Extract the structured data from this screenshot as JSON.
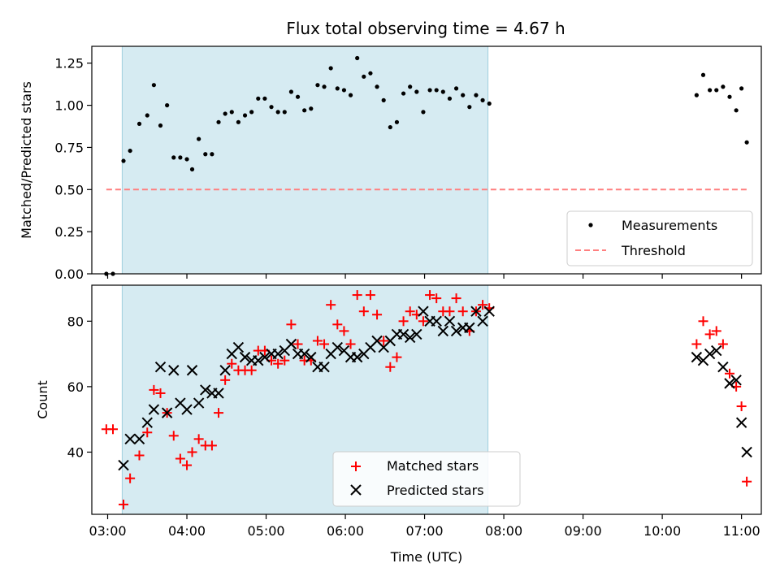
{
  "chart_data": [
    {
      "type": "scatter",
      "title": "Flux total observing time = 4.67 h",
      "xlabel": "",
      "ylabel": "Matched/Predicted stars",
      "xlim": [
        "02:48",
        "11:15"
      ],
      "ylim": [
        0,
        1.35
      ],
      "yticks": [
        0.0,
        0.25,
        0.5,
        0.75,
        1.0,
        1.25
      ],
      "ytick_labels": [
        "0.00",
        "0.25",
        "0.50",
        "0.75",
        "1.00",
        "1.25"
      ],
      "shaded_span": [
        "03:11",
        "07:48"
      ],
      "legend_position": "lower-right",
      "series": [
        {
          "name": "Measurements",
          "kind": "scatter",
          "color": "#000000",
          "x": [
            "02:59",
            "03:04",
            "03:12",
            "03:17",
            "03:24",
            "03:30",
            "03:35",
            "03:40",
            "03:45",
            "03:50",
            "03:55",
            "04:00",
            "04:04",
            "04:09",
            "04:14",
            "04:19",
            "04:24",
            "04:29",
            "04:34",
            "04:39",
            "04:44",
            "04:49",
            "04:54",
            "04:59",
            "05:04",
            "05:09",
            "05:14",
            "05:19",
            "05:24",
            "05:29",
            "05:34",
            "05:39",
            "05:44",
            "05:49",
            "05:54",
            "05:59",
            "06:04",
            "06:09",
            "06:14",
            "06:19",
            "06:24",
            "06:29",
            "06:34",
            "06:39",
            "06:44",
            "06:49",
            "06:54",
            "06:59",
            "07:04",
            "07:09",
            "07:14",
            "07:19",
            "07:24",
            "07:29",
            "07:34",
            "07:39",
            "07:44",
            "07:49",
            "10:26",
            "10:31",
            "10:36",
            "10:41",
            "10:46",
            "10:51",
            "10:56",
            "11:00",
            "11:04"
          ],
          "y": [
            0.0,
            0.0,
            0.67,
            0.73,
            0.89,
            0.94,
            1.12,
            0.88,
            1.0,
            0.69,
            0.69,
            0.68,
            0.62,
            0.8,
            0.71,
            0.71,
            0.9,
            0.95,
            0.96,
            0.9,
            0.94,
            0.96,
            1.04,
            1.04,
            0.99,
            0.96,
            0.96,
            1.08,
            1.05,
            0.97,
            0.98,
            1.12,
            1.11,
            1.22,
            1.1,
            1.09,
            1.06,
            1.28,
            1.17,
            1.19,
            1.11,
            1.03,
            0.87,
            0.9,
            1.07,
            1.11,
            1.08,
            0.96,
            1.09,
            1.09,
            1.08,
            1.04,
            1.1,
            1.06,
            0.99,
            1.06,
            1.03,
            1.01,
            1.06,
            1.18,
            1.09,
            1.09,
            1.11,
            1.05,
            0.97,
            1.1,
            0.78
          ]
        },
        {
          "name": "Threshold",
          "kind": "line",
          "style": "dashed",
          "color": "#ff7f7f",
          "x": [
            "02:59",
            "11:04"
          ],
          "y": [
            0.5,
            0.5
          ]
        }
      ]
    },
    {
      "type": "scatter",
      "title": "",
      "xlabel": "Time (UTC)",
      "ylabel": "Count",
      "xlim": [
        "02:48",
        "11:15"
      ],
      "ylim": [
        21,
        91
      ],
      "yticks": [
        40,
        60,
        80
      ],
      "ytick_labels": [
        "40",
        "60",
        "80"
      ],
      "xticks": [
        "03:00",
        "04:00",
        "05:00",
        "06:00",
        "07:00",
        "08:00",
        "09:00",
        "10:00",
        "11:00"
      ],
      "xtick_labels": [
        "03:00",
        "04:00",
        "05:00",
        "06:00",
        "07:00",
        "08:00",
        "09:00",
        "10:00",
        "11:00"
      ],
      "shaded_span": [
        "03:11",
        "07:48"
      ],
      "legend_position": "lower-center",
      "series": [
        {
          "name": "Matched stars",
          "kind": "scatter",
          "marker": "plus",
          "color": "#ff0000",
          "x": [
            "02:59",
            "03:04",
            "03:12",
            "03:17",
            "03:24",
            "03:30",
            "03:35",
            "03:40",
            "03:45",
            "03:50",
            "03:55",
            "04:00",
            "04:04",
            "04:09",
            "04:14",
            "04:19",
            "04:24",
            "04:29",
            "04:34",
            "04:39",
            "04:44",
            "04:49",
            "04:54",
            "04:59",
            "05:04",
            "05:09",
            "05:14",
            "05:19",
            "05:24",
            "05:29",
            "05:34",
            "05:39",
            "05:44",
            "05:49",
            "05:54",
            "05:59",
            "06:04",
            "06:09",
            "06:14",
            "06:19",
            "06:24",
            "06:29",
            "06:34",
            "06:39",
            "06:44",
            "06:49",
            "06:54",
            "06:59",
            "07:04",
            "07:09",
            "07:14",
            "07:19",
            "07:24",
            "07:29",
            "07:34",
            "07:39",
            "07:44",
            "07:49",
            "10:26",
            "10:31",
            "10:36",
            "10:41",
            "10:46",
            "10:51",
            "10:56",
            "11:00",
            "11:04"
          ],
          "y": [
            47,
            47,
            24,
            32,
            39,
            46,
            59,
            58,
            52,
            45,
            38,
            36,
            40,
            44,
            42,
            42,
            52,
            62,
            67,
            65,
            65,
            65,
            71,
            71,
            68,
            67,
            68,
            79,
            73,
            68,
            68,
            74,
            73,
            85,
            79,
            77,
            73,
            88,
            83,
            88,
            82,
            74,
            66,
            69,
            80,
            83,
            82,
            80,
            88,
            87,
            83,
            83,
            87,
            83,
            77,
            83,
            85,
            84,
            73,
            80,
            76,
            77,
            73,
            64,
            60,
            54,
            31
          ]
        },
        {
          "name": "Predicted stars",
          "kind": "scatter",
          "marker": "x",
          "color": "#000000",
          "x": [
            "03:12",
            "03:17",
            "03:24",
            "03:30",
            "03:35",
            "03:40",
            "03:45",
            "03:50",
            "03:55",
            "04:00",
            "04:04",
            "04:09",
            "04:14",
            "04:19",
            "04:24",
            "04:29",
            "04:34",
            "04:39",
            "04:44",
            "04:49",
            "04:54",
            "04:59",
            "05:04",
            "05:09",
            "05:14",
            "05:19",
            "05:24",
            "05:29",
            "05:34",
            "05:39",
            "05:44",
            "05:49",
            "05:54",
            "05:59",
            "06:04",
            "06:09",
            "06:14",
            "06:19",
            "06:24",
            "06:29",
            "06:34",
            "06:39",
            "06:44",
            "06:49",
            "06:54",
            "06:59",
            "07:04",
            "07:09",
            "07:14",
            "07:19",
            "07:24",
            "07:29",
            "07:34",
            "07:39",
            "07:44",
            "07:49",
            "10:26",
            "10:31",
            "10:36",
            "10:41",
            "10:46",
            "10:51",
            "10:56",
            "11:00",
            "11:04"
          ],
          "y": [
            36,
            44,
            44,
            49,
            53,
            66,
            52,
            65,
            55,
            53,
            65,
            55,
            59,
            58,
            58,
            65,
            70,
            72,
            69,
            68,
            68,
            69,
            70,
            70,
            71,
            73,
            70,
            70,
            69,
            66,
            66,
            70,
            72,
            71,
            69,
            69,
            70,
            72,
            74,
            72,
            74,
            76,
            76,
            75,
            76,
            83,
            80,
            80,
            77,
            80,
            77,
            78,
            78,
            83,
            80,
            83,
            69,
            68,
            70,
            71,
            66,
            61,
            62,
            49,
            40
          ]
        }
      ]
    }
  ]
}
